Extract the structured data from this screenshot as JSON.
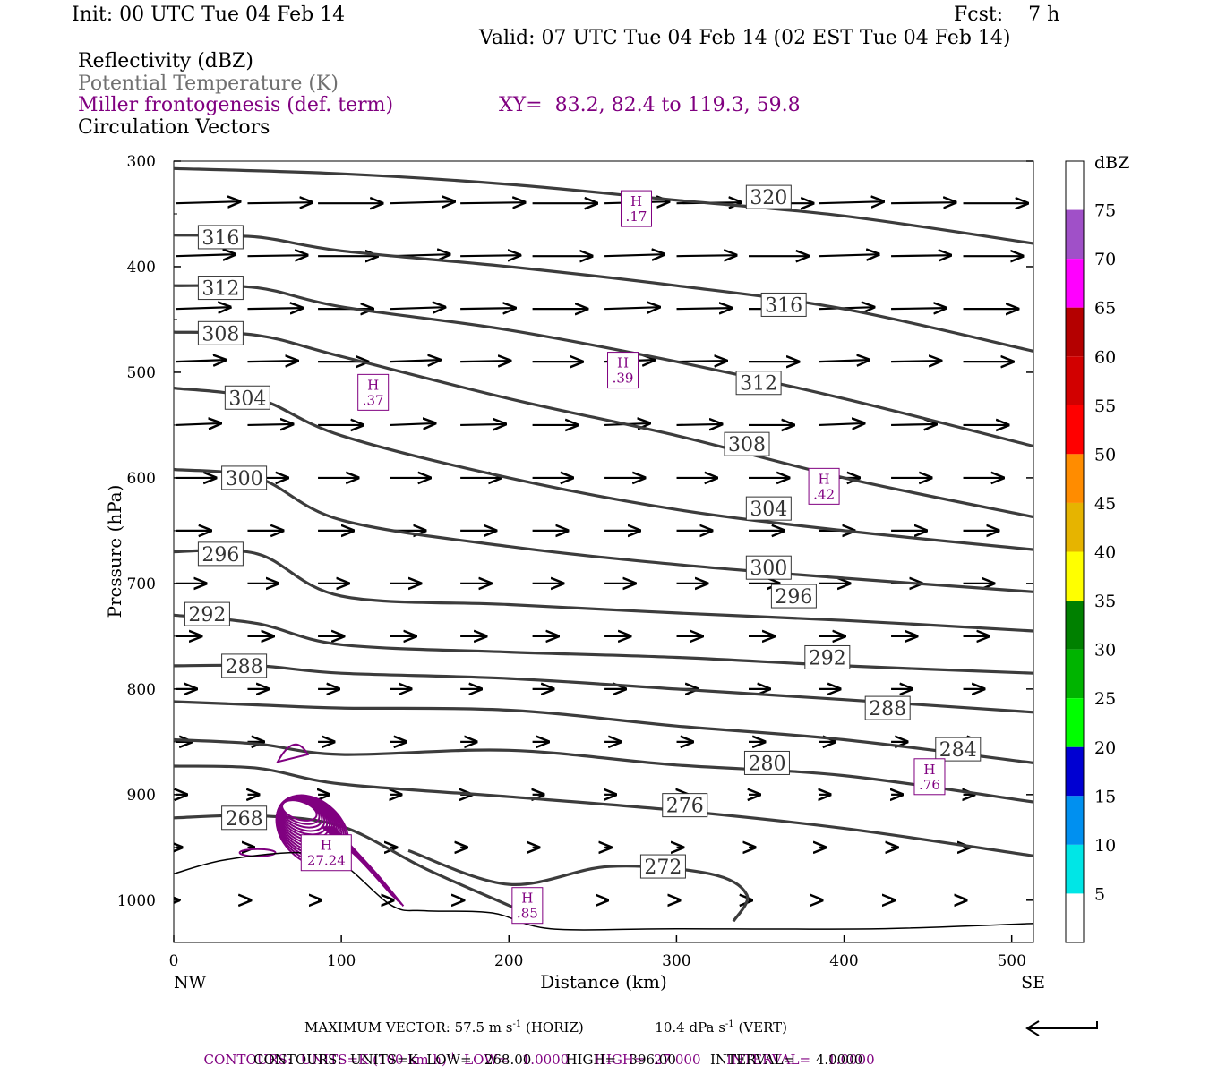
{
  "header": {
    "init": "Init: 00 UTC Tue 04 Feb 14",
    "fcst": "Fcst:    7 h",
    "valid": "Valid: 07 UTC Tue 04 Feb 14 (02 EST Tue 04 Feb 14)"
  },
  "legend_lines": {
    "reflectivity": "Reflectivity (dBZ)",
    "theta": "Potential Temperature (K)",
    "miller": "Miller frontogenesis (def. term)",
    "xy": "XY=  83.2, 82.4 to 119.3, 59.8",
    "circulation": "Circulation Vectors"
  },
  "colors": {
    "theta": "#3c3c3c",
    "frontogenesis": "#800080",
    "vector": "#000000",
    "header_gray": "#707070"
  },
  "footer": {
    "maxvec": "MAXIMUM VECTOR:  57.5 m s",
    "maxvec_exp": "-1",
    "maxvec_horiz": "(HORIZ)",
    "maxvec_vert": "10.4 dPa s",
    "maxvec_vert_exp": "-1",
    "maxvec_vert_tail": "(VERT)",
    "contours1_a": "CONTOURS:  UNITS=K (100 km h)",
    "contours1_exp": "-1",
    "contours1_b": "LOW=   1.0000      HIGH=  27.000      INTERVAL=    1.0000",
    "contours2": "CONTOURS:  UNITS=K  LOW=   268.00        HIGH=   396.00        INTERVAL=     4.0000"
  },
  "chart_data": {
    "type": "line",
    "title": "",
    "xlabel": "Distance (km)",
    "ylabel": "Pressure (hPa)",
    "xlim": [
      0,
      513
    ],
    "ylim": [
      1040,
      300
    ],
    "x_ticks": [
      "0",
      "100",
      "200",
      "300",
      "400",
      "500"
    ],
    "x_tick_values": [
      0,
      100,
      200,
      300,
      400,
      500
    ],
    "x_end_labels": [
      "NW",
      "SE"
    ],
    "y_ticks": [
      "300",
      "400",
      "500",
      "600",
      "700",
      "800",
      "900",
      "1000"
    ],
    "y_tick_values": [
      300,
      400,
      500,
      600,
      700,
      800,
      900,
      1000
    ],
    "colorbar": {
      "unit": "dBZ",
      "labels": [
        "75",
        "70",
        "65",
        "60",
        "55",
        "50",
        "45",
        "40",
        "35",
        "30",
        "25",
        "20",
        "15",
        "10",
        "5"
      ],
      "colors": [
        "#ffffff",
        "#a050c8",
        "#ff00ff",
        "#b40000",
        "#d20000",
        "#ff0000",
        "#ff8c00",
        "#e6b400",
        "#ffff00",
        "#008000",
        "#00b400",
        "#00ff00",
        "#0000d2",
        "#0090f0",
        "#00e6e6",
        "#ffffff"
      ]
    },
    "isentropes": [
      {
        "name": "320",
        "label_at": [
          355,
          334
        ],
        "points": [
          [
            0,
            307
          ],
          [
            100,
            312
          ],
          [
            200,
            322
          ],
          [
            300,
            337
          ],
          [
            400,
            352
          ],
          [
            513,
            378
          ]
        ]
      },
      {
        "name": "316",
        "label_at": [
          28,
          372
        ],
        "label2_at": [
          364,
          436
        ],
        "points": [
          [
            0,
            370
          ],
          [
            50,
            372
          ],
          [
            100,
            385
          ],
          [
            200,
            400
          ],
          [
            300,
            418
          ],
          [
            400,
            440
          ],
          [
            513,
            480
          ]
        ]
      },
      {
        "name": "312",
        "label_at": [
          28,
          420
        ],
        "label2_at": [
          349,
          510
        ],
        "points": [
          [
            0,
            418
          ],
          [
            50,
            420
          ],
          [
            100,
            438
          ],
          [
            200,
            460
          ],
          [
            300,
            490
          ],
          [
            400,
            525
          ],
          [
            513,
            570
          ]
        ]
      },
      {
        "name": "308",
        "label_at": [
          28,
          463
        ],
        "label2_at": [
          342,
          568
        ],
        "points": [
          [
            0,
            462
          ],
          [
            50,
            465
          ],
          [
            100,
            485
          ],
          [
            200,
            525
          ],
          [
            300,
            560
          ],
          [
            400,
            600
          ],
          [
            513,
            637
          ]
        ]
      },
      {
        "name": "304",
        "label_at": [
          44,
          524
        ],
        "label2_at": [
          355,
          629
        ],
        "points": [
          [
            0,
            515
          ],
          [
            50,
            525
          ],
          [
            100,
            560
          ],
          [
            200,
            600
          ],
          [
            300,
            630
          ],
          [
            400,
            650
          ],
          [
            513,
            668
          ]
        ]
      },
      {
        "name": "300",
        "label_at": [
          42,
          600
        ],
        "label2_at": [
          355,
          685
        ],
        "points": [
          [
            0,
            592
          ],
          [
            50,
            600
          ],
          [
            100,
            640
          ],
          [
            200,
            665
          ],
          [
            300,
            682
          ],
          [
            400,
            695
          ],
          [
            513,
            708
          ]
        ]
      },
      {
        "name": "296",
        "label_at": [
          28,
          672
        ],
        "label2_at": [
          370,
          712
        ],
        "points": [
          [
            0,
            670
          ],
          [
            50,
            672
          ],
          [
            100,
            712
          ],
          [
            200,
            720
          ],
          [
            300,
            728
          ],
          [
            400,
            735
          ],
          [
            513,
            745
          ]
        ]
      },
      {
        "name": "292",
        "label_at": [
          20,
          729
        ],
        "label2_at": [
          390,
          770
        ],
        "points": [
          [
            0,
            730
          ],
          [
            50,
            738
          ],
          [
            100,
            758
          ],
          [
            200,
            765
          ],
          [
            300,
            770
          ],
          [
            400,
            778
          ],
          [
            513,
            785
          ]
        ]
      },
      {
        "name": "288",
        "label_at": [
          42,
          778
        ],
        "label2_at": [
          426,
          818
        ],
        "points": [
          [
            0,
            778
          ],
          [
            50,
            778
          ],
          [
            100,
            785
          ],
          [
            200,
            790
          ],
          [
            300,
            800
          ],
          [
            400,
            810
          ],
          [
            513,
            822
          ]
        ]
      },
      {
        "name": "284",
        "label_at": [
          468,
          857
        ],
        "points": [
          [
            0,
            812
          ],
          [
            50,
            815
          ],
          [
            100,
            818
          ],
          [
            200,
            820
          ],
          [
            300,
            835
          ],
          [
            400,
            848
          ],
          [
            513,
            870
          ]
        ]
      },
      {
        "name": "280",
        "label_at": [
          354,
          870
        ],
        "points": [
          [
            0,
            848
          ],
          [
            50,
            852
          ],
          [
            100,
            862
          ],
          [
            200,
            858
          ],
          [
            300,
            872
          ],
          [
            400,
            882
          ],
          [
            513,
            907
          ]
        ]
      },
      {
        "name": "276",
        "label_at": [
          305,
          910
        ],
        "points": [
          [
            0,
            873
          ],
          [
            50,
            875
          ],
          [
            100,
            890
          ],
          [
            200,
            902
          ],
          [
            300,
            915
          ],
          [
            400,
            932
          ],
          [
            513,
            958
          ]
        ]
      },
      {
        "name": "272",
        "label_at": [
          292,
          968
        ],
        "points": [
          [
            140,
            953
          ],
          [
            200,
            985
          ],
          [
            260,
            968
          ],
          [
            320,
            975
          ],
          [
            342,
            995
          ],
          [
            334,
            1020
          ]
        ]
      },
      {
        "name": "268",
        "label_at": [
          42,
          922
        ],
        "points": [
          [
            0,
            922
          ],
          [
            50,
            920
          ],
          [
            100,
            930
          ],
          [
            150,
            970
          ],
          [
            200,
            1005
          ],
          [
            220,
            1020
          ]
        ]
      }
    ],
    "frontogenesis_maxima": [
      {
        "label": "H",
        "value": ".17",
        "at": [
          276,
          345
        ]
      },
      {
        "label": "H",
        "value": ".37",
        "at": [
          119,
          519
        ]
      },
      {
        "label": "H",
        "value": ".39",
        "at": [
          268,
          498
        ]
      },
      {
        "label": "H",
        "value": ".42",
        "at": [
          388,
          608
        ]
      },
      {
        "label": "H",
        "value": ".76",
        "at": [
          451,
          883
        ]
      },
      {
        "label": "H",
        "value": "27.24",
        "at": [
          91,
          955
        ]
      },
      {
        "label": "H",
        "value": ".85",
        "at": [
          211,
          1005
        ]
      }
    ]
  }
}
